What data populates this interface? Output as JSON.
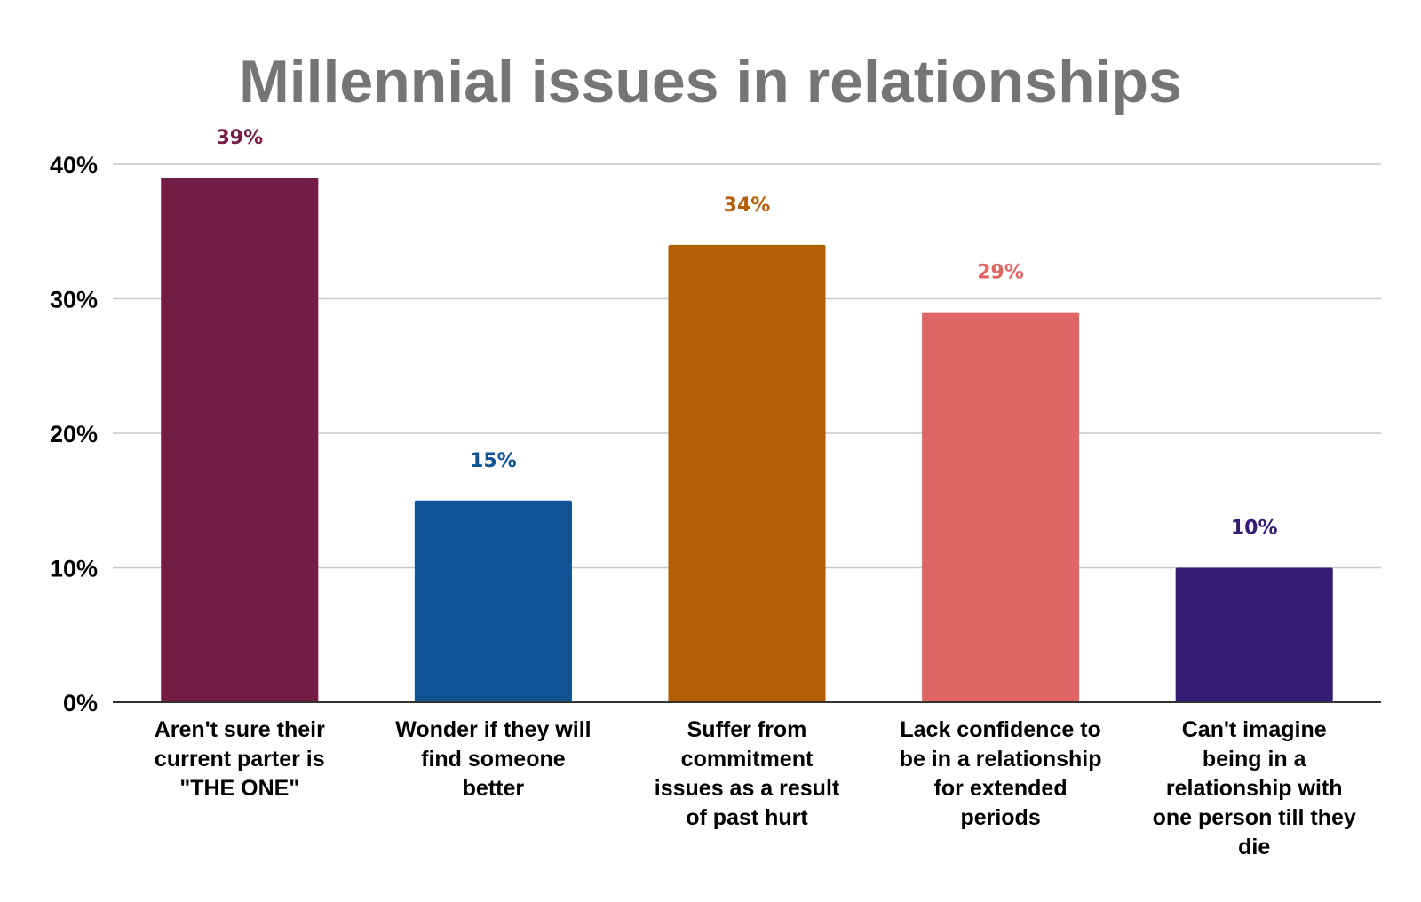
{
  "chart_data": {
    "type": "bar",
    "title": "Millennial issues in relationships",
    "xlabel": "",
    "ylabel": "",
    "ylim": [
      0,
      40
    ],
    "yticks": [
      0,
      10,
      20,
      30,
      40
    ],
    "ytick_suffix": "%",
    "grid": true,
    "categories": [
      [
        "Aren't sure their",
        "current parter is",
        "\"THE ONE\""
      ],
      [
        "Wonder if they will",
        "find someone",
        "better"
      ],
      [
        "Suffer from",
        "commitment",
        "issues as a result",
        "of past hurt"
      ],
      [
        "Lack confidence to",
        "be in a relationship",
        "for extended",
        "periods"
      ],
      [
        "Can't imagine",
        "being in a",
        "relationship with",
        "one person till they",
        "die"
      ]
    ],
    "values": [
      39,
      15,
      34,
      29,
      10
    ],
    "data_labels": [
      "39%",
      "15%",
      "34%",
      "29%",
      "10%"
    ],
    "colors": [
      "#731c45",
      "#0f5394",
      "#b45f06",
      "#e06666",
      "#351c75"
    ]
  }
}
